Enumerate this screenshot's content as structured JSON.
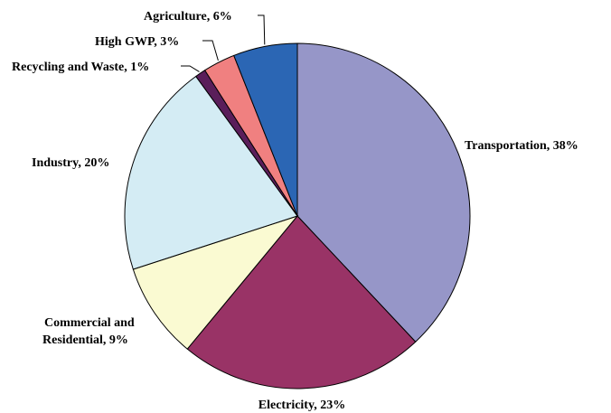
{
  "chart_data": {
    "type": "pie",
    "title": "",
    "slices": [
      {
        "label": "Transportation, 38%",
        "name": "Transportation",
        "value": 38,
        "color": "#9696c8"
      },
      {
        "label": "Electricity, 23%",
        "name": "Electricity",
        "value": 23,
        "color": "#993366"
      },
      {
        "label": "Commercial and Residential, 9%",
        "label_lines": [
          "Commercial and",
          "Residential, 9%"
        ],
        "name": "Commercial and Residential",
        "value": 9,
        "color": "#fafad2"
      },
      {
        "label": "Industry, 20%",
        "name": "Industry",
        "value": 20,
        "color": "#d4ecf4"
      },
      {
        "label": "Recycling and Waste, 1%",
        "name": "Recycling and Waste",
        "value": 1,
        "color": "#5a1e5a"
      },
      {
        "label": "High GWP, 3%",
        "name": "High GWP",
        "value": 3,
        "color": "#f08080"
      },
      {
        "label": "Agriculture, 6%",
        "name": "Agriculture",
        "value": 6,
        "color": "#2b66b4"
      }
    ],
    "start_angle": "12 o'clock",
    "direction": "clockwise",
    "legend": "none"
  }
}
